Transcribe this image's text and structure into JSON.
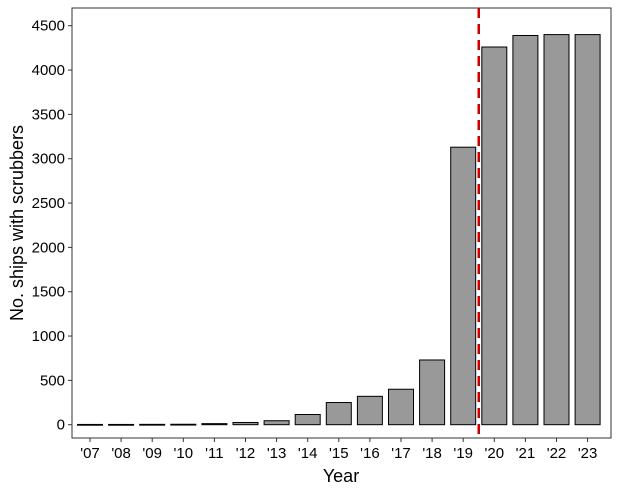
{
  "chart_data": {
    "type": "bar",
    "xlabel": "Year",
    "ylabel": "No. ships with scrubbers",
    "categories": [
      "'07",
      "'08",
      "'09",
      "'10",
      "'11",
      "'12",
      "'13",
      "'14",
      "'15",
      "'16",
      "'17",
      "'18",
      "'19",
      "'20",
      "'21",
      "'22",
      "'23"
    ],
    "values": [
      3,
      3,
      4,
      5,
      12,
      25,
      45,
      115,
      250,
      320,
      400,
      730,
      3130,
      4260,
      4390,
      4400,
      4400
    ],
    "ylim": [
      -150,
      4700
    ],
    "yticks": [
      0,
      500,
      1000,
      1500,
      2000,
      2500,
      3000,
      3500,
      4000,
      4500
    ],
    "grid": false,
    "bar_color": "#999999",
    "bar_edge_color": "#000000",
    "reference_line": {
      "x_between": [
        "'19",
        "'20"
      ],
      "style": "dashed",
      "color": "#cc0000"
    }
  }
}
